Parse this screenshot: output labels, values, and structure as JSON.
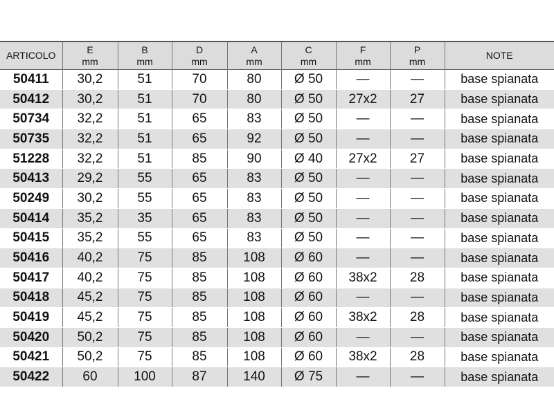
{
  "table": {
    "headers": [
      {
        "name": "ARTICOLO",
        "unit": ""
      },
      {
        "name": "E",
        "unit": "mm"
      },
      {
        "name": "B",
        "unit": "mm"
      },
      {
        "name": "D",
        "unit": "mm"
      },
      {
        "name": "A",
        "unit": "mm"
      },
      {
        "name": "C",
        "unit": "mm"
      },
      {
        "name": "F",
        "unit": "mm"
      },
      {
        "name": "P",
        "unit": "mm"
      },
      {
        "name": "NOTE",
        "unit": ""
      }
    ],
    "rows": [
      [
        "50411",
        "30,2",
        "51",
        "70",
        "80",
        "Ø 50",
        "—",
        "—",
        "base spianata"
      ],
      [
        "50412",
        "30,2",
        "51",
        "70",
        "80",
        "Ø 50",
        "27x2",
        "27",
        "base spianata"
      ],
      [
        "50734",
        "32,2",
        "51",
        "65",
        "83",
        "Ø 50",
        "—",
        "—",
        "base spianata"
      ],
      [
        "50735",
        "32,2",
        "51",
        "65",
        "92",
        "Ø 50",
        "—",
        "—",
        "base spianata"
      ],
      [
        "51228",
        "32,2",
        "51",
        "85",
        "90",
        "Ø 40",
        "27x2",
        "27",
        "base spianata"
      ],
      [
        "50413",
        "29,2",
        "55",
        "65",
        "83",
        "Ø 50",
        "—",
        "—",
        "base spianata"
      ],
      [
        "50249",
        "30,2",
        "55",
        "65",
        "83",
        "Ø 50",
        "—",
        "—",
        "base spianata"
      ],
      [
        "50414",
        "35,2",
        "35",
        "65",
        "83",
        "Ø 50",
        "—",
        "—",
        "base spianata"
      ],
      [
        "50415",
        "35,2",
        "55",
        "65",
        "83",
        "Ø 50",
        "—",
        "—",
        "base spianata"
      ],
      [
        "50416",
        "40,2",
        "75",
        "85",
        "108",
        "Ø 60",
        "—",
        "—",
        "base spianata"
      ],
      [
        "50417",
        "40,2",
        "75",
        "85",
        "108",
        "Ø 60",
        "38x2",
        "28",
        "base spianata"
      ],
      [
        "50418",
        "45,2",
        "75",
        "85",
        "108",
        "Ø 60",
        "—",
        "—",
        "base spianata"
      ],
      [
        "50419",
        "45,2",
        "75",
        "85",
        "108",
        "Ø 60",
        "38x2",
        "28",
        "base spianata"
      ],
      [
        "50420",
        "50,2",
        "75",
        "85",
        "108",
        "Ø 60",
        "—",
        "—",
        "base spianata"
      ],
      [
        "50421",
        "50,2",
        "75",
        "85",
        "108",
        "Ø 60",
        "38x2",
        "28",
        "base spianata"
      ],
      [
        "50422",
        "60",
        "100",
        "87",
        "140",
        "Ø 75",
        "—",
        "—",
        "base spianata"
      ]
    ]
  }
}
